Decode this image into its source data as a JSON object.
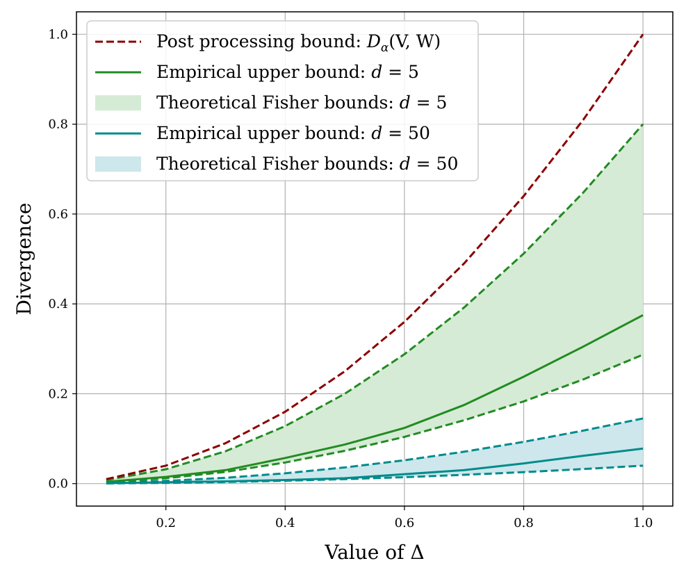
{
  "chart_data": {
    "type": "line",
    "title": "",
    "xlabel": "Value of Δ",
    "ylabel": "Divergence",
    "xlim": [
      0.05,
      1.05
    ],
    "ylim": [
      -0.05,
      1.05
    ],
    "xticks": [
      0.2,
      0.4,
      0.6,
      0.8,
      1.0
    ],
    "yticks": [
      0.0,
      0.2,
      0.4,
      0.6,
      0.8,
      1.0
    ],
    "xtick_labels": [
      "0.2",
      "0.4",
      "0.6",
      "0.8",
      "1.0"
    ],
    "ytick_labels": [
      "0.0",
      "0.2",
      "0.4",
      "0.6",
      "0.8",
      "1.0"
    ],
    "grid": true,
    "legend_position": "top-left",
    "x": [
      0.1,
      0.2,
      0.3,
      0.4,
      0.5,
      0.6,
      0.7,
      0.8,
      0.9,
      1.0
    ],
    "series": [
      {
        "name": "Post processing bound: Dα(V, W)",
        "style": "dashed",
        "color": "#8b0000",
        "values": [
          0.01,
          0.04,
          0.09,
          0.16,
          0.25,
          0.36,
          0.49,
          0.64,
          0.81,
          1.0
        ]
      },
      {
        "name": "Empirical upper bound: d = 5",
        "style": "solid",
        "color": "#228b22",
        "values": [
          0.004,
          0.015,
          0.03,
          0.057,
          0.087,
          0.124,
          0.175,
          0.238,
          0.305,
          0.375
        ]
      },
      {
        "name": "Theoretical Fisher bounds: d = 5",
        "style": "band",
        "color": "#228b22",
        "fill": "#d5ebd5",
        "lower": [
          0.003,
          0.012,
          0.026,
          0.047,
          0.073,
          0.104,
          0.141,
          0.183,
          0.232,
          0.287
        ],
        "upper": [
          0.008,
          0.032,
          0.072,
          0.128,
          0.2,
          0.288,
          0.392,
          0.512,
          0.648,
          0.8
        ]
      },
      {
        "name": "Empirical upper bound: d = 50",
        "style": "solid",
        "color": "#008b8b",
        "values": [
          0.001,
          0.003,
          0.005,
          0.008,
          0.012,
          0.021,
          0.03,
          0.045,
          0.062,
          0.078
        ]
      },
      {
        "name": "Theoretical Fisher bounds: d = 50",
        "style": "band",
        "color": "#008b8b",
        "fill": "#cde7ec",
        "lower": [
          0.0004,
          0.0016,
          0.0036,
          0.0064,
          0.01,
          0.0144,
          0.0196,
          0.0256,
          0.0324,
          0.04
        ],
        "upper": [
          0.0015,
          0.006,
          0.013,
          0.023,
          0.036,
          0.052,
          0.071,
          0.093,
          0.118,
          0.145
        ]
      }
    ]
  },
  "legend": {
    "items": [
      {
        "type": "dashed",
        "color": "#8b0000",
        "prefix": "Post processing bound:  ",
        "math": "D",
        "sub": "α",
        "suffix": "(V, W)"
      },
      {
        "type": "solid",
        "color": "#228b22",
        "prefix": "Empirical upper bound:  ",
        "math": "d",
        "sub": "",
        "suffix": " = 5"
      },
      {
        "type": "patch",
        "color": "#d5ebd5",
        "prefix": "Theoretical Fisher bounds:  ",
        "math": "d",
        "sub": "",
        "suffix": " = 5"
      },
      {
        "type": "solid",
        "color": "#008b8b",
        "prefix": "Empirical upper bound:  ",
        "math": "d",
        "sub": "",
        "suffix": " = 50"
      },
      {
        "type": "patch",
        "color": "#cde7ec",
        "prefix": "Theoretical Fisher bounds:  ",
        "math": "d",
        "sub": "",
        "suffix": " = 50"
      }
    ]
  }
}
